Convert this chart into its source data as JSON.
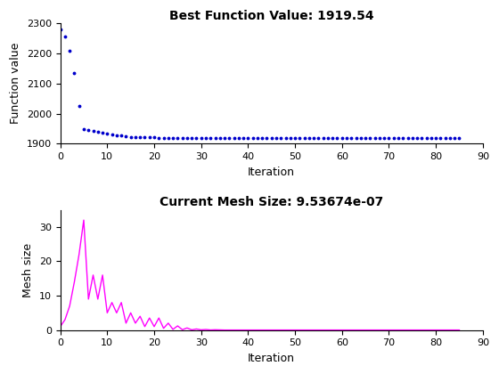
{
  "title1": "Best Function Value: 1919.54",
  "title2": "Current Mesh Size: 9.53674e-07",
  "xlabel": "Iteration",
  "ylabel1": "Function value",
  "ylabel2": "Mesh size",
  "xlim": [
    0,
    90
  ],
  "ylim1": [
    1900,
    2300
  ],
  "ylim2": [
    0,
    35
  ],
  "dot_color": "#0000cc",
  "line_color": "#ff00ff",
  "bg_color": "#ffffff",
  "func_yticks": [
    1900,
    2000,
    2100,
    2200,
    2300
  ],
  "mesh_yticks": [
    0,
    10,
    20,
    30
  ],
  "xticks": [
    0,
    10,
    20,
    30,
    40,
    50,
    60,
    70,
    80,
    90
  ],
  "func_iters": [
    0,
    1,
    2,
    3,
    4,
    5,
    6,
    7,
    8,
    9,
    10,
    11,
    12,
    13,
    14,
    15,
    16,
    17,
    18,
    19,
    20,
    21,
    22,
    23,
    24,
    25,
    26,
    27,
    28,
    29,
    30,
    31,
    32,
    33,
    34,
    35,
    36,
    37,
    38,
    39,
    40,
    41,
    42,
    43,
    44,
    45,
    46,
    47,
    48,
    49,
    50,
    51,
    52,
    53,
    54,
    55,
    56,
    57,
    58,
    59,
    60,
    61,
    62,
    63,
    64,
    65,
    66,
    67,
    68,
    69,
    70,
    71,
    72,
    73,
    74,
    75,
    76,
    77,
    78,
    79,
    80,
    81,
    82,
    83,
    84,
    85
  ],
  "func_vals": [
    2280,
    2255,
    2210,
    2135,
    2025,
    1948,
    1944,
    1941,
    1938,
    1935,
    1933,
    1931,
    1929,
    1927,
    1925,
    1923,
    1922,
    1922,
    1921,
    1921,
    1921,
    1920,
    1920,
    1920,
    1920,
    1920,
    1920,
    1920,
    1920,
    1920,
    1920,
    1920,
    1920,
    1920,
    1920,
    1920,
    1920,
    1920,
    1920,
    1920,
    1920,
    1920,
    1920,
    1920,
    1920,
    1920,
    1920,
    1920,
    1920,
    1920,
    1920,
    1920,
    1920,
    1920,
    1920,
    1920,
    1920,
    1920,
    1920,
    1920,
    1920,
    1920,
    1920,
    1920,
    1920,
    1920,
    1920,
    1920,
    1920,
    1920,
    1920,
    1920,
    1920,
    1920,
    1920,
    1920,
    1920,
    1920,
    1920,
    1920,
    1920,
    1920,
    1920,
    1920,
    1920,
    1920
  ],
  "mesh_x": [
    0,
    1,
    2,
    3,
    4,
    5,
    6,
    7,
    8,
    9,
    10,
    11,
    12,
    13,
    14,
    15,
    16,
    17,
    18,
    19,
    20,
    21,
    22,
    23,
    24,
    25,
    26,
    27,
    28,
    29,
    30,
    31,
    32,
    33,
    34,
    35,
    36,
    37,
    38,
    39,
    40,
    85
  ],
  "mesh_y": [
    1.0,
    4.0,
    8.0,
    14.0,
    22.0,
    32.0,
    9.0,
    16.0,
    9.0,
    16.0,
    5.0,
    8.0,
    5.0,
    8.0,
    2.0,
    5.0,
    3.0,
    5.0,
    2.0,
    3.5,
    1.0,
    3.5,
    1.0,
    2.0,
    0.5,
    1.5,
    0.2,
    0.8,
    0.1,
    0.5,
    0.1,
    0.8,
    0.1,
    0.3,
    0.05,
    0.1,
    0.02,
    0.05,
    0.01,
    0.02,
    0.0,
    0.0
  ]
}
